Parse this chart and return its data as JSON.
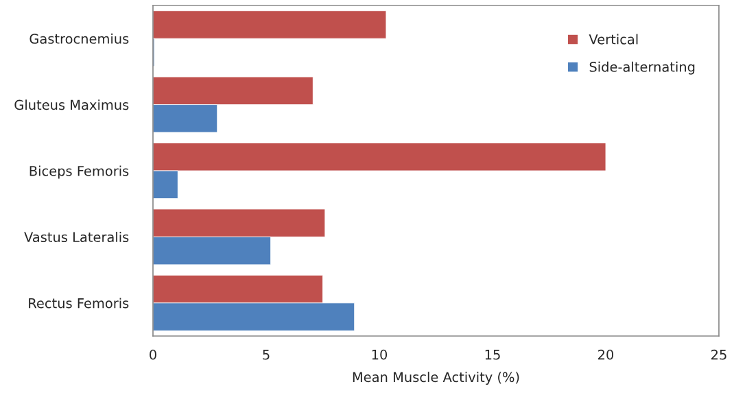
{
  "chart_data": {
    "type": "bar",
    "orientation": "horizontal",
    "xlabel": "Mean Muscle Activity (%)",
    "categories": [
      "Gastrocnemius",
      "Gluteus Maximus",
      "Biceps Femoris",
      "Vastus Lateralis",
      "Rectus Femoris"
    ],
    "series": [
      {
        "name": "Vertical",
        "color": "#c0504d",
        "values": [
          10.3,
          7.07,
          20.0,
          7.6,
          7.5
        ]
      },
      {
        "name": "Side-alternating",
        "color": "#4f81bd",
        "values": [
          0.06,
          2.84,
          1.1,
          5.2,
          8.9
        ]
      }
    ],
    "xlim": [
      0,
      25
    ],
    "xticks": [
      0,
      5,
      10,
      15,
      20,
      25
    ],
    "grid": false,
    "legend": "top right"
  }
}
